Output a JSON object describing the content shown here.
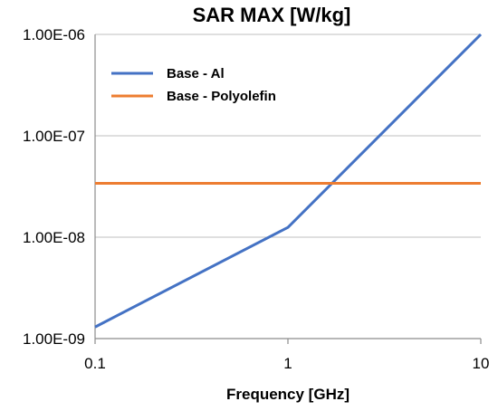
{
  "chart_data": {
    "type": "line",
    "title": "SAR MAX [W/kg]",
    "xlabel": "Frequency [GHz]",
    "ylabel": "",
    "x_scale": "log",
    "y_scale": "log",
    "xlim": [
      0.1,
      10
    ],
    "ylim": [
      1e-09,
      1e-06
    ],
    "x_ticks": [
      0.1,
      1,
      10
    ],
    "x_tick_labels": [
      "0.1",
      "1",
      "10"
    ],
    "y_ticks": [
      1e-09,
      1e-08,
      1e-07,
      1e-06
    ],
    "y_tick_labels": [
      "1.00E-09",
      "1.00E-08",
      "1.00E-07",
      "1.00E-06"
    ],
    "grid": "horizontal",
    "legend_position": "top-left",
    "series": [
      {
        "name": "Base - Al",
        "color": "#4472C4",
        "x": [
          0.1,
          1,
          10
        ],
        "y": [
          1.3e-09,
          1.25e-08,
          1e-06
        ]
      },
      {
        "name": "Base - Polyolefin",
        "color": "#ED7D31",
        "x": [
          0.1,
          10
        ],
        "y": [
          3.4e-08,
          3.4e-08
        ]
      }
    ]
  }
}
